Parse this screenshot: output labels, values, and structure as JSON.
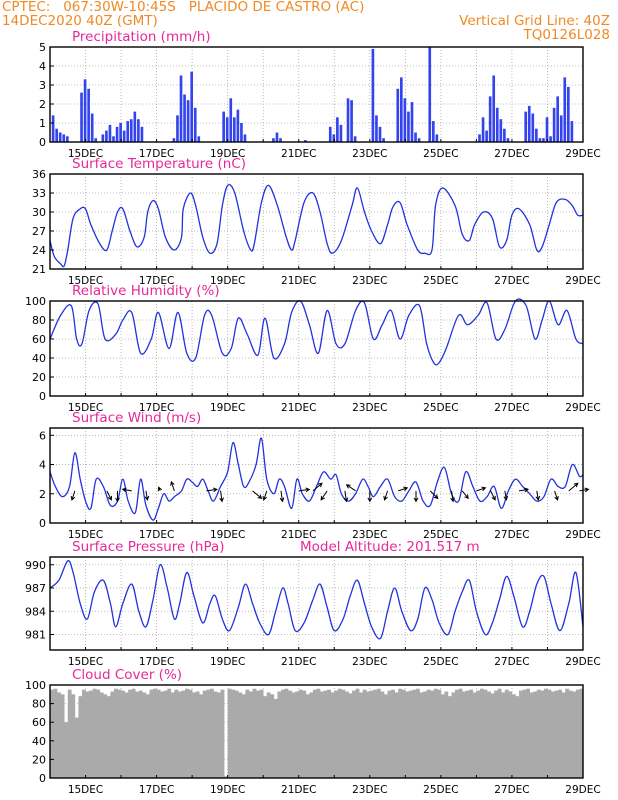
{
  "header": {
    "line1_left": "CPTEC:   067:30W-10:45S   PLACIDO DE CASTRO (AC)",
    "line2_left": "14DEC2020 40Z (GMT)",
    "line2_right": "Vertical Grid Line: 40Z",
    "line3_right": "TQ0126L028",
    "colors": {
      "header": "#f08a24",
      "title": "#e8289a",
      "series": "#2233dd",
      "bars": "#3344ee",
      "cloud": "#aaaaaa"
    }
  },
  "x_axis": {
    "tick_labels": [
      "15DEC",
      "17DEC",
      "19DEC",
      "21DEC",
      "23DEC",
      "25DEC",
      "27DEC",
      "29DEC"
    ],
    "start": "14DEC2020 00Z",
    "end": "29DEC2020 00Z",
    "unit": "day"
  },
  "chart_data": [
    {
      "type": "bar",
      "title": "Precipitation (mm/h)",
      "ylim": [
        0,
        5
      ],
      "yticks": [
        "0",
        "1",
        "2",
        "3",
        "4",
        "5"
      ],
      "x_start": 0.1,
      "x_step": 0.1,
      "values": [
        1.4,
        0.7,
        0.5,
        0.4,
        0.3,
        0,
        0,
        0,
        2.6,
        3.3,
        2.8,
        1.5,
        0.2,
        0,
        0.4,
        0.6,
        0.9,
        0.3,
        0.8,
        1,
        0.6,
        1.1,
        1.2,
        1.6,
        1.2,
        0.8,
        0,
        0,
        0,
        0,
        0,
        0,
        0,
        0,
        0.2,
        1.4,
        3.5,
        2.5,
        2.2,
        3.7,
        1.8,
        0.3,
        0,
        0,
        0,
        0,
        0,
        0,
        1.6,
        1.3,
        2.3,
        1.3,
        1.7,
        1,
        0.4,
        0,
        0,
        0,
        0,
        0,
        0,
        0,
        0.2,
        0.5,
        0.2,
        0,
        0,
        0,
        0,
        0,
        0,
        0.1,
        0,
        0,
        0,
        0,
        0,
        0,
        0.8,
        0.4,
        1.3,
        0.9,
        0,
        2.3,
        2.2,
        0.3,
        0,
        0,
        0,
        0,
        4.9,
        1.4,
        0.8,
        0.2,
        0,
        0,
        0,
        2.8,
        3.4,
        2.3,
        1.6,
        2.1,
        0.5,
        0.2,
        0,
        0,
        5,
        1.1,
        0.4,
        0,
        0,
        0,
        0,
        0,
        0,
        0,
        0,
        0,
        0,
        0,
        0.4,
        1.3,
        0.6,
        2.4,
        3.5,
        1.8,
        1.2,
        0.7,
        0.2,
        0,
        0,
        0,
        0,
        1.6,
        1.9,
        1.5,
        0.7,
        0.2,
        0.2,
        1.3,
        0.3,
        1.8,
        2.4,
        1.4,
        3.4,
        2.9,
        1.1,
        0,
        0,
        0,
        0,
        0,
        0,
        0,
        0,
        0,
        0,
        0,
        0,
        0,
        0,
        0,
        0,
        0,
        0,
        0,
        0,
        0,
        0,
        0.8,
        1.5,
        2.3,
        1.3,
        0.8,
        0,
        0,
        0,
        0,
        0,
        0,
        0,
        0,
        0,
        0,
        0,
        0,
        0,
        0,
        0,
        0,
        0,
        0,
        0,
        0,
        0.3,
        0.6,
        0.3,
        0.8,
        1.1,
        2.2,
        0.9,
        2.3,
        1.2,
        1.9,
        0.9,
        0,
        0.1,
        0.3,
        0,
        0,
        0,
        0.2,
        0.9,
        2,
        2.6,
        0.7,
        0.1,
        0,
        0,
        0,
        0,
        0,
        0.3,
        0.5,
        0.3,
        0,
        0,
        0,
        0.6,
        0.9,
        1.6,
        2.9,
        1.9,
        1.6
      ]
    },
    {
      "type": "line",
      "title": "Surface Temperature (nC)",
      "ylim": [
        21,
        36
      ],
      "yticks": [
        "21",
        "24",
        "27",
        "30",
        "33",
        "36"
      ],
      "x": [
        0,
        0.12,
        0.3,
        0.4,
        0.5,
        0.65,
        0.85,
        1,
        1.15,
        1.4,
        1.6,
        1.75,
        1.9,
        2.05,
        2.25,
        2.45,
        2.65,
        2.75,
        2.9,
        3.05,
        3.25,
        3.5,
        3.7,
        3.75,
        3.95,
        4.1,
        4.3,
        4.5,
        4.7,
        4.85,
        5,
        5.2,
        5.45,
        5.65,
        5.75,
        5.95,
        6.15,
        6.4,
        6.65,
        6.8,
        6.9,
        7.15,
        7.4,
        7.6,
        7.8,
        7.95,
        8.2,
        8.5,
        8.65,
        8.85,
        9.05,
        9.3,
        9.5,
        9.65,
        9.85,
        10.05,
        10.35,
        10.55,
        10.75,
        10.85,
        11.05,
        11.4,
        11.6,
        11.8,
        11.95,
        12.2,
        12.45,
        12.65,
        12.85,
        13,
        13.2,
        13.5,
        13.7,
        13.85,
        14.05,
        14.25,
        14.5,
        14.7,
        14.85,
        15
      ],
      "values": [
        25.5,
        23,
        21.8,
        21.5,
        24,
        29,
        30.5,
        30.5,
        28,
        25,
        24,
        27,
        30,
        30.5,
        27,
        24.5,
        26,
        30,
        31.8,
        30.5,
        26,
        24,
        26,
        30.5,
        33,
        31,
        26,
        23.5,
        25,
        31,
        34.2,
        33,
        27,
        24,
        25,
        31.5,
        34.2,
        31,
        26,
        24,
        25.5,
        31.5,
        33,
        30,
        25,
        23.5,
        25.5,
        31,
        33.8,
        30,
        27,
        25,
        28,
        30.8,
        31.5,
        28,
        24,
        23.5,
        24,
        31,
        33.8,
        31,
        26.5,
        25.5,
        28,
        30,
        29,
        24.5,
        25.5,
        29.5,
        30.5,
        28,
        24,
        24.5,
        28,
        31.5,
        32,
        31,
        29.5,
        29.5
      ]
    },
    {
      "type": "line",
      "title": "Relative Humidity (%)",
      "ylim": [
        0,
        100
      ],
      "yticks": [
        "0",
        "20",
        "40",
        "60",
        "80",
        "100"
      ],
      "x": [
        0,
        0.3,
        0.6,
        0.75,
        0.9,
        1.1,
        1.35,
        1.55,
        1.85,
        2.05,
        2.3,
        2.55,
        2.85,
        3.05,
        3.35,
        3.6,
        3.85,
        4.1,
        4.35,
        4.55,
        4.85,
        5.1,
        5.3,
        5.55,
        5.85,
        6.05,
        6.3,
        6.6,
        6.8,
        7.05,
        7.3,
        7.55,
        7.8,
        8.05,
        8.3,
        8.6,
        8.85,
        9.1,
        9.35,
        9.6,
        9.85,
        10.1,
        10.4,
        10.6,
        10.8,
        10.95,
        11.15,
        11.5,
        11.75,
        12.05,
        12.3,
        12.55,
        12.8,
        13.1,
        13.4,
        13.65,
        13.85,
        14.05,
        14.3,
        14.55,
        14.8,
        15
      ],
      "values": [
        60,
        85,
        95,
        60,
        55,
        90,
        97,
        60,
        65,
        80,
        88,
        45,
        60,
        88,
        50,
        88,
        45,
        40,
        85,
        85,
        45,
        50,
        82,
        65,
        43,
        82,
        40,
        55,
        88,
        100,
        75,
        45,
        90,
        55,
        55,
        90,
        98,
        60,
        75,
        90,
        60,
        85,
        95,
        55,
        35,
        35,
        50,
        85,
        75,
        85,
        98,
        60,
        70,
        100,
        95,
        60,
        80,
        100,
        75,
        90,
        60,
        55
      ]
    },
    {
      "type": "line",
      "title": "Surface Wind (m/s)",
      "ylim": [
        0,
        6.5
      ],
      "yticks": [
        "0",
        "2",
        "4",
        "6"
      ],
      "x": [
        0,
        0.15,
        0.35,
        0.55,
        0.7,
        0.85,
        1,
        1.15,
        1.3,
        1.5,
        1.7,
        1.9,
        2.05,
        2.2,
        2.4,
        2.55,
        2.7,
        2.9,
        3.05,
        3.2,
        3.35,
        3.5,
        3.7,
        3.85,
        4,
        4.15,
        4.3,
        4.45,
        4.6,
        4.8,
        5,
        5.15,
        5.3,
        5.45,
        5.6,
        5.8,
        5.95,
        6.1,
        6.3,
        6.45,
        6.6,
        6.8,
        6.95,
        7.1,
        7.3,
        7.5,
        7.7,
        7.9,
        8.05,
        8.2,
        8.4,
        8.6,
        8.8,
        8.95,
        9.1,
        9.3,
        9.5,
        9.7,
        9.9,
        10.1,
        10.3,
        10.5,
        10.7,
        10.9,
        11.1,
        11.3,
        11.5,
        11.7,
        11.9,
        12.1,
        12.3,
        12.5,
        12.7,
        12.9,
        13.1,
        13.3,
        13.5,
        13.7,
        13.9,
        14.1,
        14.3,
        14.5,
        14.7,
        14.9,
        15
      ],
      "values": [
        3.5,
        2.5,
        1.8,
        2.5,
        4.8,
        3,
        1.5,
        1,
        3,
        2.5,
        1.2,
        1.5,
        3,
        1.5,
        0.7,
        3,
        1.2,
        0.2,
        1,
        2,
        1.5,
        1.8,
        2.2,
        3,
        2.8,
        2.5,
        3,
        2.2,
        1.5,
        2.5,
        3.5,
        5.5,
        4,
        2.5,
        2.8,
        4,
        5.8,
        3,
        2,
        3,
        2.5,
        1,
        3,
        2,
        1.5,
        2.5,
        3.5,
        3,
        3.3,
        2,
        1.5,
        2,
        3,
        2.5,
        1.8,
        2.5,
        3,
        1.8,
        1.5,
        2.2,
        2.8,
        1.5,
        1.2,
        2.8,
        3.8,
        2,
        1.5,
        3.5,
        2.5,
        1.5,
        1.8,
        2.5,
        1,
        2.2,
        3,
        2.5,
        2,
        1.5,
        1.8,
        3,
        2.5,
        2.5,
        4,
        3.2,
        3.3
      ],
      "vectors": [
        {
          "x": 0.7,
          "dx": -0.1,
          "dy": -0.3
        },
        {
          "x": 1.6,
          "dx": 0.15,
          "dy": -0.3
        },
        {
          "x": 1.9,
          "dx": 0,
          "dy": -0.35
        },
        {
          "x": 2.3,
          "dx": -0.3,
          "dy": 0.05
        },
        {
          "x": 2.7,
          "dx": 0.05,
          "dy": -0.3
        },
        {
          "x": 3.1,
          "dx": -0.05,
          "dy": 0.12
        },
        {
          "x": 3.5,
          "dx": -0.1,
          "dy": 0.3
        },
        {
          "x": 4.4,
          "dx": 0.35,
          "dy": 0.05
        },
        {
          "x": 4.8,
          "dx": 0.05,
          "dy": -0.35
        },
        {
          "x": 5.7,
          "dx": 0.3,
          "dy": -0.25
        },
        {
          "x": 6.1,
          "dx": -0.1,
          "dy": -0.3
        },
        {
          "x": 6.5,
          "dx": 0.05,
          "dy": -0.35
        },
        {
          "x": 7.0,
          "dx": 0.35,
          "dy": 0.05
        },
        {
          "x": 7.4,
          "dx": 0.3,
          "dy": 0.25
        },
        {
          "x": 7.8,
          "dx": -0.2,
          "dy": -0.3
        },
        {
          "x": 8.3,
          "dx": 0.05,
          "dy": -0.35
        },
        {
          "x": 8.6,
          "dx": -0.3,
          "dy": 0.2
        },
        {
          "x": 9.0,
          "dx": 0,
          "dy": -0.35
        },
        {
          "x": 9.5,
          "dx": -0.1,
          "dy": -0.3
        },
        {
          "x": 9.8,
          "dx": 0.3,
          "dy": 0.1
        },
        {
          "x": 10.3,
          "dx": 0,
          "dy": -0.35
        },
        {
          "x": 10.7,
          "dx": 0.25,
          "dy": -0.25
        },
        {
          "x": 11.3,
          "dx": 0.05,
          "dy": -0.35
        },
        {
          "x": 11.6,
          "dx": 0.2,
          "dy": -0.25
        },
        {
          "x": 12.0,
          "dx": 0.3,
          "dy": 0.1
        },
        {
          "x": 12.4,
          "dx": 0.15,
          "dy": -0.3
        },
        {
          "x": 12.8,
          "dx": 0.05,
          "dy": -0.3
        },
        {
          "x": 13.2,
          "dx": 0.3,
          "dy": 0.05
        },
        {
          "x": 13.7,
          "dx": 0.05,
          "dy": -0.3
        },
        {
          "x": 14.2,
          "dx": 0.1,
          "dy": -0.3
        },
        {
          "x": 14.6,
          "dx": 0.3,
          "dy": 0.25
        },
        {
          "x": 14.9,
          "dx": 0.3,
          "dy": 0.05
        }
      ]
    },
    {
      "type": "line",
      "title": "Surface Pressure (hPa)",
      "subtitle": "Model Altitude: 201.517 m",
      "ylim": [
        979,
        991
      ],
      "yticks": [
        "981",
        "984",
        "987",
        "990"
      ],
      "x": [
        0,
        0.25,
        0.5,
        0.65,
        0.85,
        1.05,
        1.25,
        1.5,
        1.7,
        1.85,
        2.05,
        2.3,
        2.5,
        2.7,
        2.9,
        3.1,
        3.3,
        3.5,
        3.65,
        3.85,
        4.05,
        4.3,
        4.5,
        4.65,
        4.85,
        5.05,
        5.3,
        5.5,
        5.7,
        5.9,
        6.15,
        6.35,
        6.55,
        6.7,
        6.9,
        7.15,
        7.4,
        7.6,
        7.8,
        8,
        8.25,
        8.45,
        8.65,
        8.85,
        9.05,
        9.3,
        9.5,
        9.7,
        9.9,
        10.15,
        10.35,
        10.55,
        10.75,
        10.95,
        11.2,
        11.4,
        11.6,
        11.8,
        12,
        12.25,
        12.45,
        12.65,
        12.85,
        13.05,
        13.3,
        13.5,
        13.7,
        13.9,
        14.1,
        14.35,
        14.6,
        14.8,
        15
      ],
      "values": [
        987,
        988,
        990.5,
        989,
        985,
        983,
        986.5,
        988,
        985,
        982,
        985,
        987.5,
        984,
        982,
        985.5,
        990,
        987,
        983,
        985,
        989,
        986,
        982.5,
        985,
        986,
        983,
        981.5,
        984.5,
        987.5,
        985,
        982.5,
        981,
        984,
        987,
        985,
        981.5,
        982.5,
        985.5,
        987.5,
        984.5,
        981.5,
        983,
        986,
        988,
        985,
        982,
        980.5,
        984,
        987,
        984,
        981.5,
        983,
        987,
        985.5,
        982.5,
        981,
        984,
        986.5,
        988,
        984,
        981,
        982.5,
        985.5,
        988.5,
        986,
        982,
        984,
        987.5,
        988.5,
        985,
        981.5,
        985,
        989,
        982
      ]
    },
    {
      "type": "bar",
      "title": "Cloud Cover (%)",
      "ylim": [
        0,
        100
      ],
      "yticks": [
        "0",
        "20",
        "40",
        "60",
        "80",
        "100"
      ],
      "x_start": 0.05,
      "x_step": 0.1,
      "values": [
        95,
        96,
        92,
        90,
        60,
        95,
        90,
        65,
        88,
        95,
        93,
        94,
        96,
        95,
        92,
        90,
        88,
        93,
        96,
        95,
        94,
        92,
        95,
        96,
        93,
        94,
        92,
        90,
        95,
        96,
        95,
        93,
        94,
        96,
        92,
        95,
        93,
        94,
        96,
        95,
        92,
        93,
        90,
        94,
        95,
        96,
        93,
        92,
        95,
        2,
        96,
        95,
        94,
        92,
        90,
        95,
        93,
        96,
        94,
        95,
        88,
        92,
        90,
        85,
        93,
        95,
        96,
        94,
        92,
        93,
        95,
        94,
        90,
        92,
        95,
        96,
        93,
        94,
        95,
        92,
        94,
        96,
        95,
        93,
        91,
        94,
        96,
        92,
        95,
        93,
        94,
        95,
        96,
        93,
        90,
        94,
        95,
        92,
        96,
        95,
        93,
        94,
        95,
        96,
        92,
        93,
        95,
        94,
        96,
        95,
        90,
        93,
        88,
        92,
        95,
        96,
        93,
        94,
        95,
        92,
        94,
        96,
        95,
        93,
        91,
        94,
        96,
        92,
        95,
        93,
        90,
        88,
        94,
        95,
        96,
        92,
        93,
        95,
        94,
        96,
        95,
        93,
        94,
        95,
        92,
        96,
        94,
        93,
        95,
        96
      ]
    }
  ]
}
